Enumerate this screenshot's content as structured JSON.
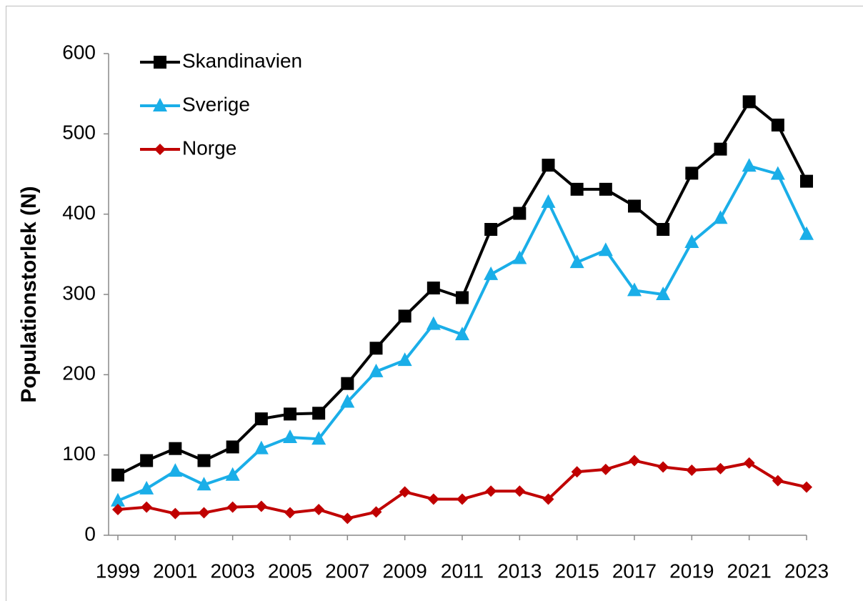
{
  "chart_data": {
    "type": "line",
    "ylabel": "Populationstorlek (N)",
    "x": [
      1999,
      2000,
      2001,
      2002,
      2003,
      2004,
      2005,
      2006,
      2007,
      2008,
      2009,
      2010,
      2011,
      2012,
      2013,
      2014,
      2015,
      2016,
      2017,
      2018,
      2019,
      2020,
      2021,
      2022,
      2023
    ],
    "xlim": [
      1999,
      2023
    ],
    "xticks": [
      1999,
      2001,
      2003,
      2005,
      2007,
      2009,
      2011,
      2013,
      2015,
      2017,
      2019,
      2021,
      2023
    ],
    "ylim": [
      0,
      600
    ],
    "yticks": [
      0,
      100,
      200,
      300,
      400,
      500,
      600
    ],
    "grid": false,
    "legend": "top-left",
    "series": [
      {
        "name": "Skandinavien",
        "color": "#000000",
        "marker": "square",
        "values": [
          75,
          93,
          108,
          93,
          110,
          145,
          151,
          152,
          189,
          233,
          273,
          308,
          296,
          381,
          401,
          461,
          431,
          431,
          410,
          381,
          451,
          481,
          540,
          511,
          441
        ]
      },
      {
        "name": "Sverige",
        "color": "#1aaee8",
        "marker": "triangle",
        "values": [
          43,
          58,
          80,
          63,
          75,
          108,
          122,
          120,
          166,
          204,
          218,
          263,
          250,
          325,
          345,
          415,
          340,
          355,
          305,
          300,
          365,
          395,
          460,
          450,
          375
        ]
      },
      {
        "name": "Norge",
        "color": "#c00000",
        "marker": "diamond",
        "values": [
          32,
          35,
          27,
          28,
          35,
          36,
          28,
          32,
          21,
          29,
          54,
          45,
          45,
          55,
          55,
          45,
          79,
          82,
          93,
          85,
          81,
          83,
          90,
          68,
          60
        ]
      }
    ]
  }
}
